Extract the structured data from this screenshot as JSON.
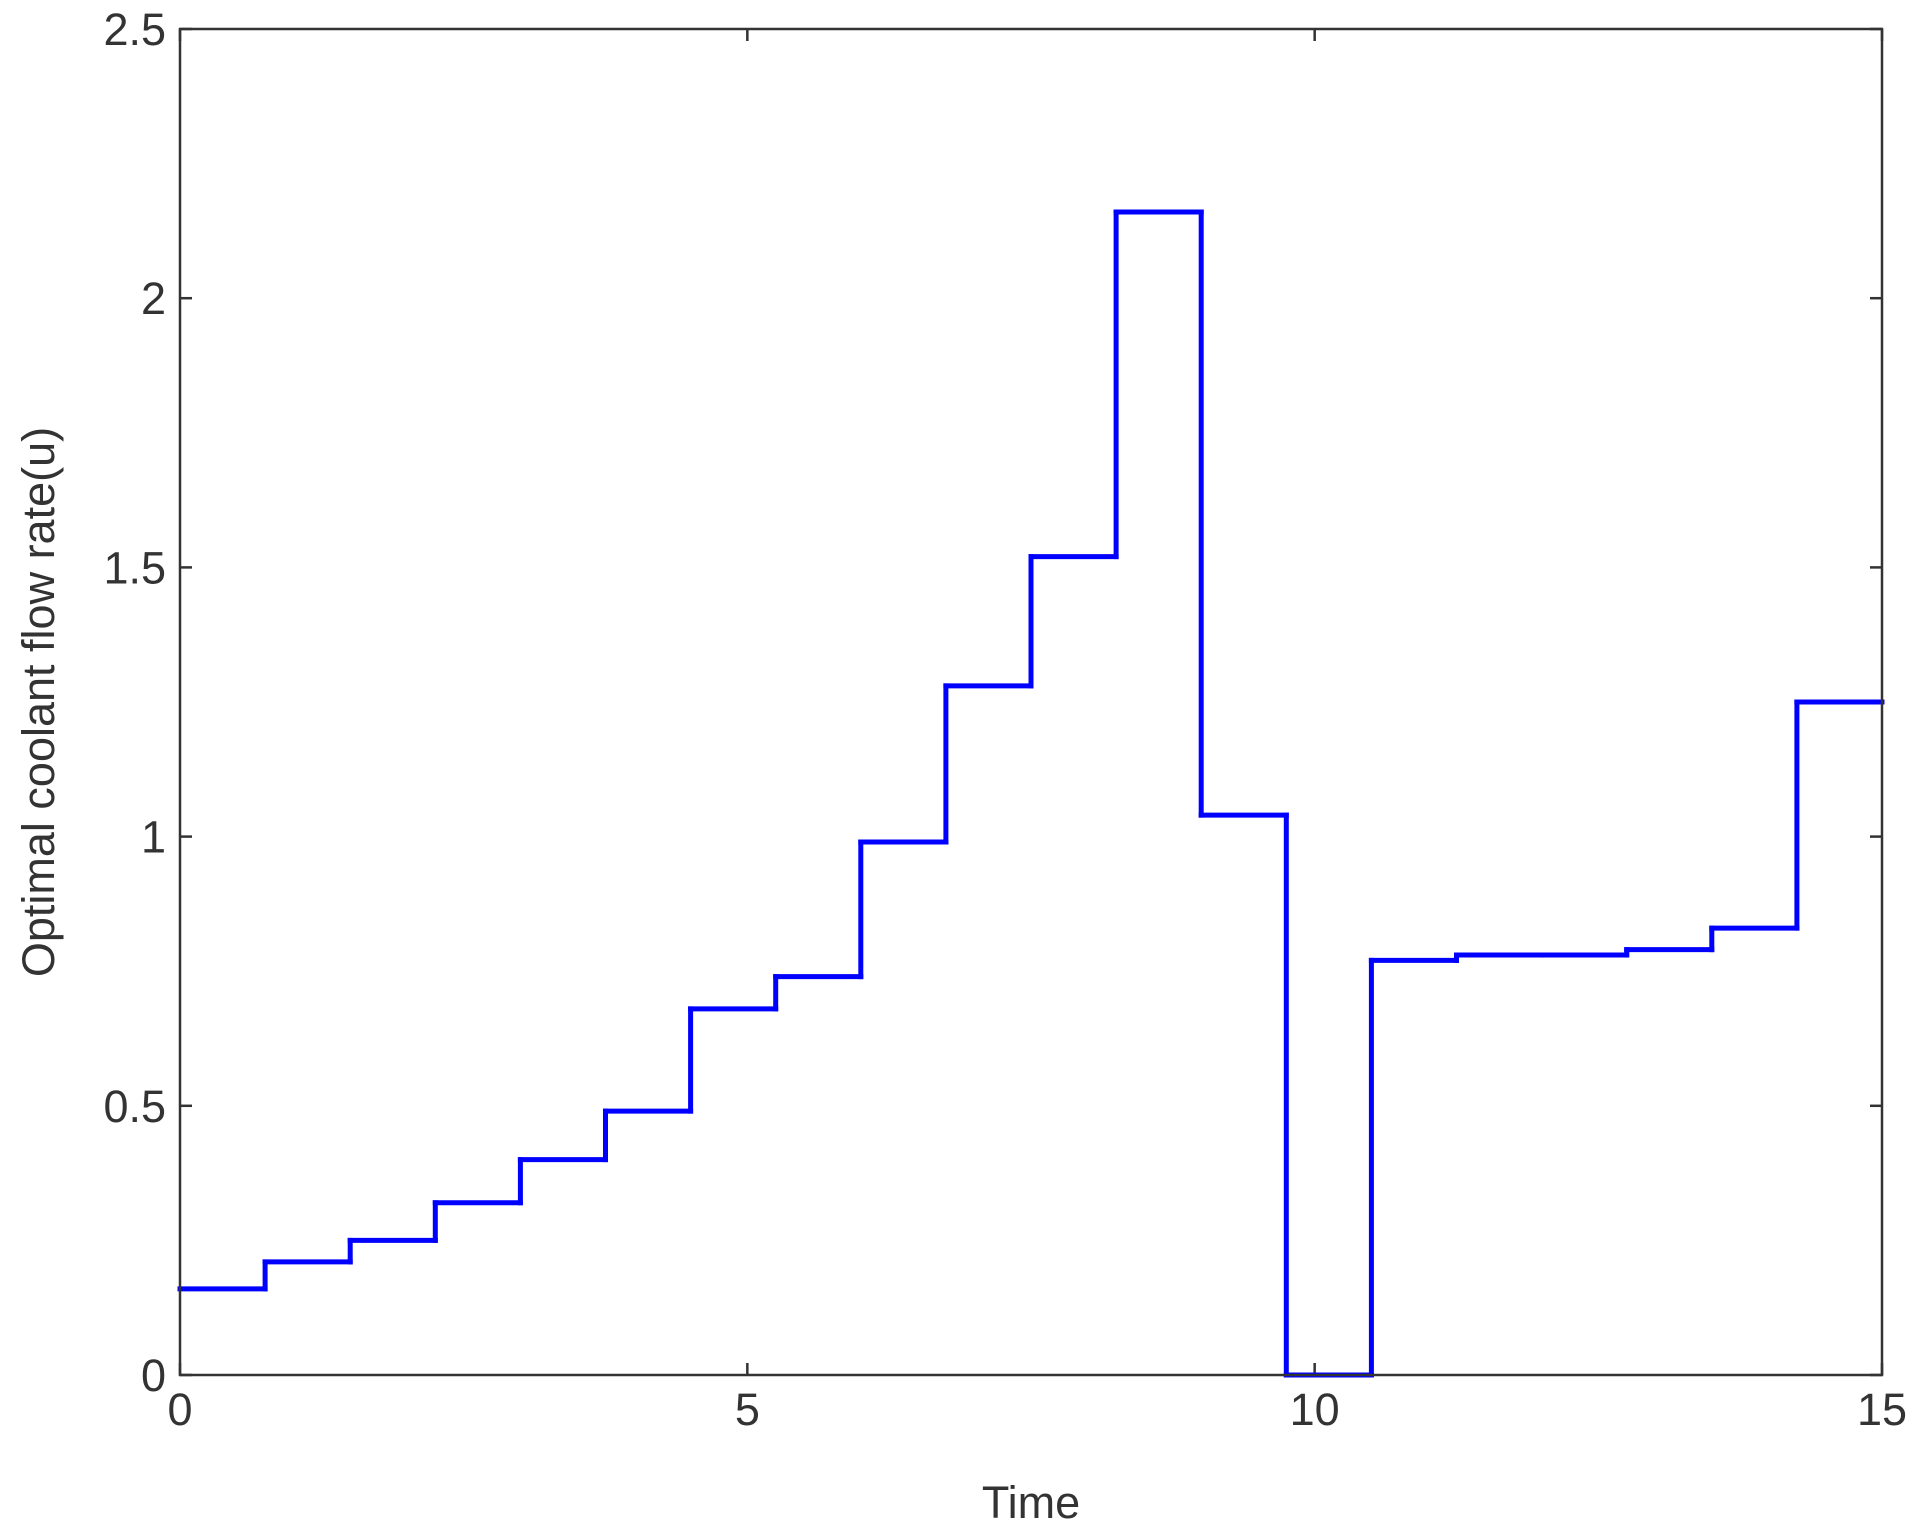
{
  "chart_data": {
    "type": "step",
    "xlabel": "Time",
    "ylabel": "Optimal coolant flow rate(u)",
    "x": [
      0,
      0.75,
      1.5,
      2.25,
      3,
      3.75,
      4.5,
      5.25,
      6,
      6.75,
      7.5,
      8.25,
      9,
      9.75,
      10.5,
      11.25,
      12,
      12.75,
      13.5,
      14.25
    ],
    "values": [
      0.16,
      0.21,
      0.25,
      0.32,
      0.4,
      0.49,
      0.68,
      0.74,
      0.99,
      1.28,
      1.52,
      2.16,
      1.04,
      0,
      0.77,
      0.78,
      0.78,
      0.79,
      0.83,
      1.25
    ],
    "color": "#0000ff",
    "xlim": [
      0,
      15
    ],
    "xticks": [
      0,
      5,
      10,
      15
    ],
    "ylim": [
      0,
      2.5
    ],
    "yticks": [
      0,
      0.5,
      1,
      1.5,
      2,
      2.5
    ]
  }
}
